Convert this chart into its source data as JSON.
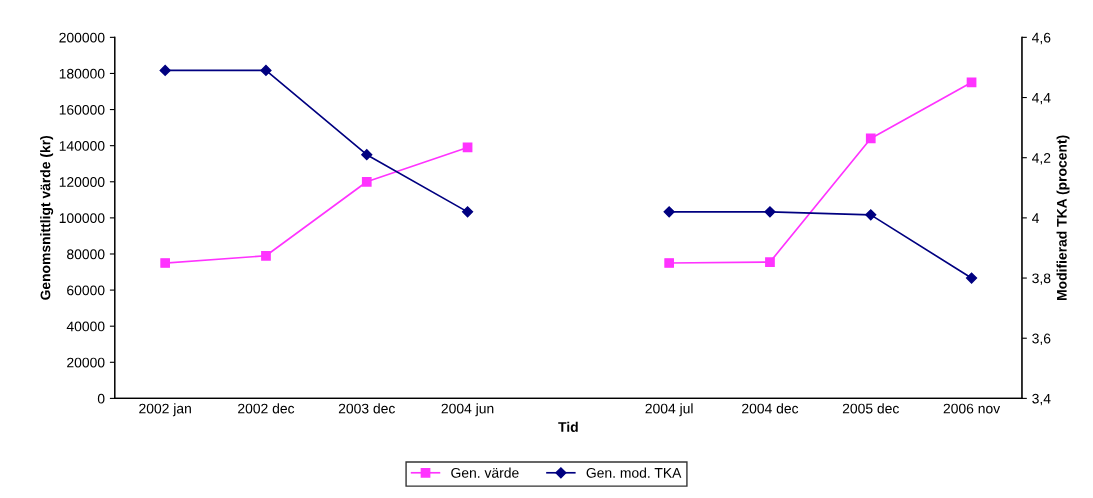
{
  "chart_data": {
    "type": "line",
    "xlabel": "Tid",
    "ylabel": "Genomsnittligt värde (kr)",
    "y2label": "Modifierad TKA (procent)",
    "categories": [
      "2002 jan",
      "2002 dec",
      "2003 dec",
      "2004 jun",
      null,
      "2004 jul",
      "2004 dec",
      "2005 dec",
      "2006 nov"
    ],
    "series": [
      {
        "name": "Gen. värde",
        "color": "#ff33ff",
        "marker": "square",
        "values": [
          75000,
          79000,
          120000,
          139000,
          null,
          75000,
          75500,
          144000,
          175000
        ]
      },
      {
        "name": "Gen. mod. TKA",
        "color": "#000080",
        "marker": "diamond",
        "axis": "y2",
        "values": [
          4.49,
          4.49,
          4.21,
          4.02,
          null,
          4.02,
          4.02,
          4.01,
          3.8
        ]
      }
    ],
    "ylim": [
      0,
      200000
    ],
    "yticks": [
      0,
      20000,
      40000,
      60000,
      80000,
      100000,
      120000,
      140000,
      160000,
      180000,
      200000
    ],
    "y2lim": [
      3.4,
      4.6
    ],
    "y2ticks": [
      {
        "value": 3.4,
        "label": "3,4"
      },
      {
        "value": 3.6,
        "label": "3,6"
      },
      {
        "value": 3.8,
        "label": "3,8"
      },
      {
        "value": 4,
        "label": "4"
      },
      {
        "value": 4.2,
        "label": "4,2"
      },
      {
        "value": 4.4,
        "label": "4,4"
      },
      {
        "value": 4.6,
        "label": "4,6"
      }
    ],
    "legend": "bottom",
    "grid": false
  }
}
